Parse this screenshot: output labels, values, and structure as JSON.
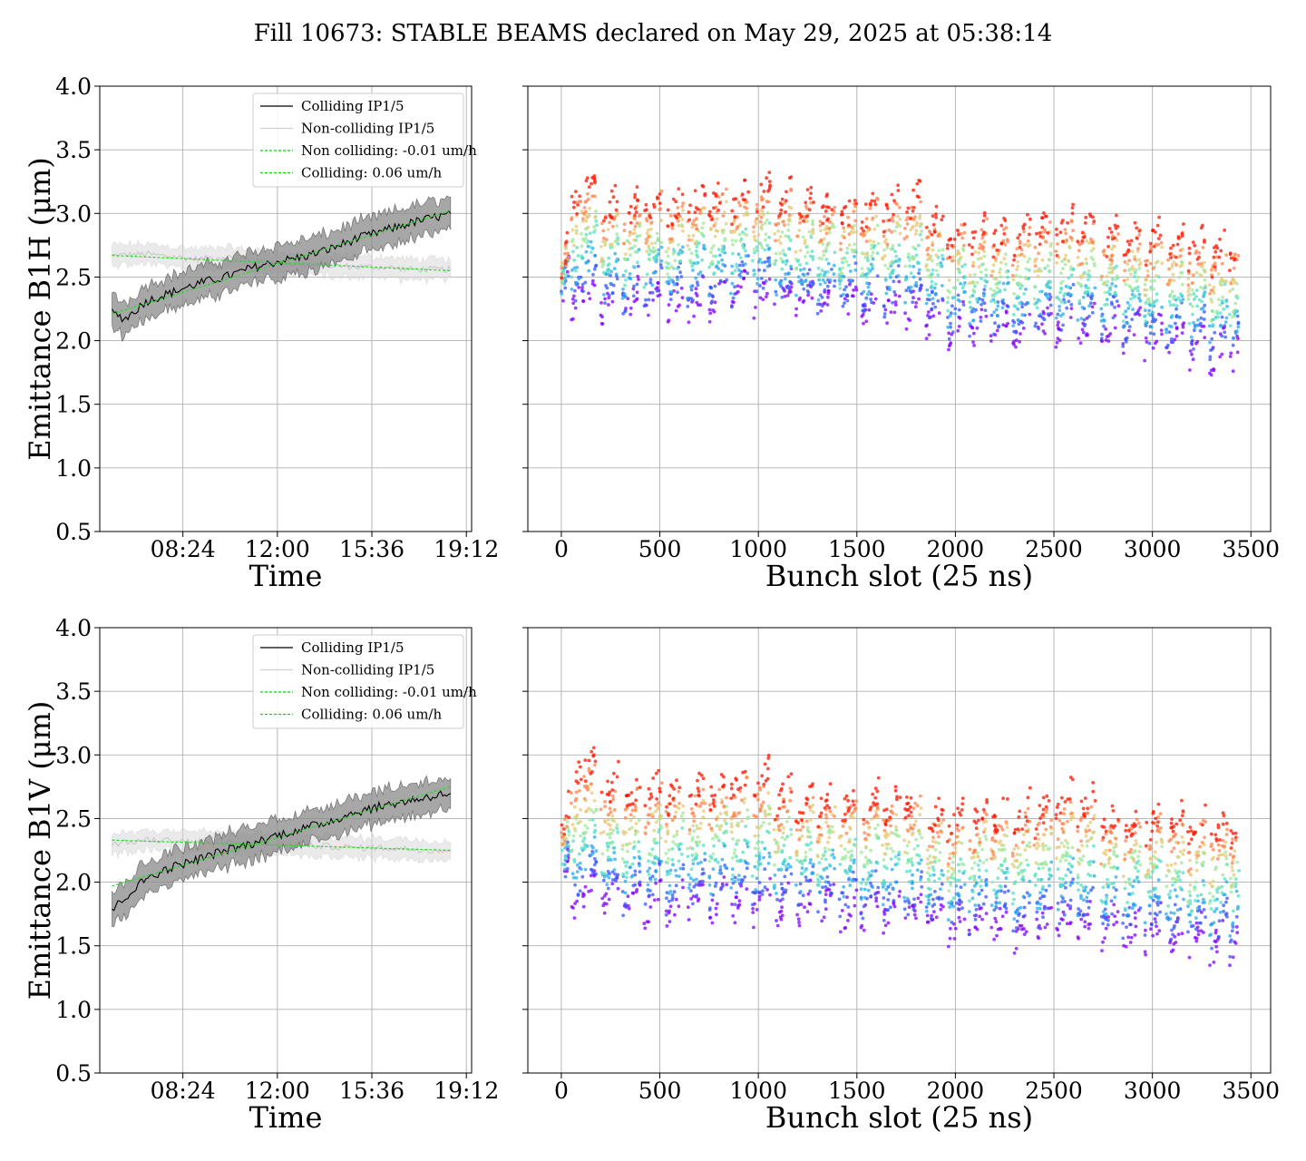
{
  "figure": {
    "title": "Fill 10673: STABLE BEAMS declared on May 29, 2025 at 05:38:14"
  },
  "chart_data": [
    {
      "id": "b1h-time",
      "type": "line",
      "xlabel": "Time",
      "ylabel": "Emittance B1H (μm)",
      "ylim": [
        0.5,
        4.0
      ],
      "xlim": [
        "05:14",
        "19:24"
      ],
      "x_ticks": [
        "08:24",
        "12:00",
        "15:36",
        "19:12"
      ],
      "y_ticks": [
        "0.5",
        "1.0",
        "1.5",
        "2.0",
        "2.5",
        "3.0",
        "3.5",
        "4.0"
      ],
      "grid": true,
      "legend_position": "upper-right",
      "legend": [
        {
          "label": "Colliding IP1/5",
          "color": "#000000",
          "style": "solid"
        },
        {
          "label": "Non-colliding IP1/5",
          "color": "#cfcfcf",
          "style": "solid"
        },
        {
          "label": "Non colliding: -0.01 um/h",
          "color": "#00dd00",
          "style": "dashed"
        },
        {
          "label": "Colliding: 0.06 um/h",
          "color": "#00dd00",
          "style": "dashed"
        }
      ],
      "series": [
        {
          "name": "Colliding IP1/5",
          "x_hours": [
            5.7,
            6.2,
            7.0,
            8.0,
            9.0,
            10.0,
            11.0,
            12.0,
            13.0,
            14.0,
            15.0,
            16.0,
            17.0,
            18.0,
            18.6
          ],
          "mean": [
            2.22,
            2.17,
            2.31,
            2.38,
            2.45,
            2.5,
            2.57,
            2.62,
            2.66,
            2.72,
            2.8,
            2.86,
            2.92,
            2.97,
            2.99
          ],
          "band": 0.13
        },
        {
          "name": "Non-colliding IP1/5",
          "x_hours": [
            5.7,
            7.0,
            8.0,
            9.0,
            10.0,
            11.0,
            12.0,
            13.0,
            14.0,
            15.0,
            16.0,
            17.0,
            18.0,
            18.6
          ],
          "mean": [
            2.67,
            2.68,
            2.66,
            2.64,
            2.66,
            2.63,
            2.61,
            2.6,
            2.59,
            2.58,
            2.58,
            2.56,
            2.56,
            2.56
          ],
          "band": 0.08
        },
        {
          "name": "Non colliding: -0.01 um/h",
          "x_hours": [
            5.7,
            18.6
          ],
          "y": [
            2.67,
            2.55
          ]
        },
        {
          "name": "Colliding: 0.06 um/h",
          "x_hours": [
            5.7,
            18.6
          ],
          "y": [
            2.21,
            3.02
          ]
        }
      ]
    },
    {
      "id": "b1h-bunch",
      "type": "scatter",
      "xlabel": "Bunch slot (25 ns)",
      "ylabel": "",
      "xlim": [
        -170,
        3600
      ],
      "ylim": [
        0.5,
        4.0
      ],
      "x_ticks": [
        "0",
        "500",
        "1000",
        "1500",
        "2000",
        "2500",
        "3000",
        "3500"
      ],
      "grid": true,
      "color_scale": "rainbow (purple = earliest, red = latest)",
      "trains": [
        {
          "start": 0,
          "end": 40,
          "low": 2.45,
          "high": 2.75
        },
        {
          "start": 50,
          "end": 180,
          "low": 2.25,
          "high": 3.35
        },
        {
          "start": 200,
          "end": 290,
          "low": 2.2,
          "high": 3.2
        },
        {
          "start": 310,
          "end": 400,
          "low": 2.2,
          "high": 3.2
        },
        {
          "start": 420,
          "end": 510,
          "low": 2.2,
          "high": 3.25
        },
        {
          "start": 530,
          "end": 620,
          "low": 2.2,
          "high": 3.2
        },
        {
          "start": 640,
          "end": 730,
          "low": 2.2,
          "high": 3.25
        },
        {
          "start": 750,
          "end": 840,
          "low": 2.2,
          "high": 3.3
        },
        {
          "start": 860,
          "end": 950,
          "low": 2.25,
          "high": 3.3
        },
        {
          "start": 970,
          "end": 1060,
          "low": 2.25,
          "high": 3.3
        },
        {
          "start": 1080,
          "end": 1170,
          "low": 2.2,
          "high": 3.25
        },
        {
          "start": 1190,
          "end": 1280,
          "low": 2.2,
          "high": 3.2
        },
        {
          "start": 1300,
          "end": 1390,
          "low": 2.2,
          "high": 3.2
        },
        {
          "start": 1410,
          "end": 1500,
          "low": 2.2,
          "high": 3.15
        },
        {
          "start": 1520,
          "end": 1610,
          "low": 2.15,
          "high": 3.2
        },
        {
          "start": 1630,
          "end": 1720,
          "low": 2.15,
          "high": 3.2
        },
        {
          "start": 1740,
          "end": 1830,
          "low": 2.15,
          "high": 3.25
        },
        {
          "start": 1850,
          "end": 1940,
          "low": 2.1,
          "high": 3.1
        },
        {
          "start": 1960,
          "end": 2050,
          "low": 2.0,
          "high": 3.0
        },
        {
          "start": 2070,
          "end": 2160,
          "low": 2.0,
          "high": 3.0
        },
        {
          "start": 2180,
          "end": 2270,
          "low": 2.0,
          "high": 3.0
        },
        {
          "start": 2290,
          "end": 2380,
          "low": 1.95,
          "high": 3.0
        },
        {
          "start": 2400,
          "end": 2490,
          "low": 2.0,
          "high": 3.05
        },
        {
          "start": 2510,
          "end": 2600,
          "low": 2.0,
          "high": 3.05
        },
        {
          "start": 2620,
          "end": 2710,
          "low": 2.0,
          "high": 3.05
        },
        {
          "start": 2740,
          "end": 2830,
          "low": 2.0,
          "high": 2.95
        },
        {
          "start": 2850,
          "end": 2940,
          "low": 1.95,
          "high": 2.95
        },
        {
          "start": 2960,
          "end": 3050,
          "low": 1.9,
          "high": 2.95
        },
        {
          "start": 3070,
          "end": 3160,
          "low": 1.9,
          "high": 2.9
        },
        {
          "start": 3180,
          "end": 3270,
          "low": 1.85,
          "high": 2.9
        },
        {
          "start": 3290,
          "end": 3380,
          "low": 1.8,
          "high": 2.85
        },
        {
          "start": 3390,
          "end": 3440,
          "low": 1.75,
          "high": 2.85
        }
      ]
    },
    {
      "id": "b1v-time",
      "type": "line",
      "xlabel": "Time",
      "ylabel": "Emittance B1V (μm)",
      "ylim": [
        0.5,
        4.0
      ],
      "xlim": [
        "05:14",
        "19:24"
      ],
      "x_ticks": [
        "08:24",
        "12:00",
        "15:36",
        "19:12"
      ],
      "y_ticks": [
        "0.5",
        "1.0",
        "1.5",
        "2.0",
        "2.5",
        "3.0",
        "3.5",
        "4.0"
      ],
      "grid": true,
      "legend_position": "upper-right",
      "legend": [
        {
          "label": "Colliding IP1/5",
          "color": "#000000",
          "style": "solid"
        },
        {
          "label": "Non-colliding IP1/5",
          "color": "#cfcfcf",
          "style": "solid"
        },
        {
          "label": "Non colliding: -0.01 um/h",
          "color": "#00dd00",
          "style": "dashed"
        },
        {
          "label": "Colliding: 0.06 um/h",
          "color": "#00dd00",
          "style": "dashed"
        }
      ],
      "series": [
        {
          "name": "Colliding IP1/5",
          "x_hours": [
            5.7,
            6.2,
            7.0,
            8.0,
            9.0,
            10.0,
            11.0,
            12.0,
            13.0,
            14.0,
            15.0,
            16.0,
            17.0,
            18.0,
            18.6
          ],
          "mean": [
            1.78,
            1.88,
            2.03,
            2.12,
            2.18,
            2.25,
            2.3,
            2.37,
            2.42,
            2.48,
            2.55,
            2.6,
            2.64,
            2.68,
            2.7
          ],
          "band": 0.13
        },
        {
          "name": "Non-colliding IP1/5",
          "x_hours": [
            5.7,
            7.0,
            8.0,
            9.0,
            10.0,
            11.0,
            12.0,
            13.0,
            14.0,
            15.0,
            16.0,
            17.0,
            18.0,
            18.6
          ],
          "mean": [
            2.3,
            2.33,
            2.33,
            2.32,
            2.31,
            2.3,
            2.3,
            2.29,
            2.28,
            2.27,
            2.27,
            2.26,
            2.25,
            2.25
          ],
          "band": 0.08
        },
        {
          "name": "Non colliding: -0.01 um/h",
          "x_hours": [
            5.7,
            18.6
          ],
          "y": [
            2.33,
            2.25
          ]
        },
        {
          "name": "Colliding: 0.06 um/h",
          "x_hours": [
            5.7,
            18.6
          ],
          "y": [
            1.97,
            2.75
          ]
        }
      ]
    },
    {
      "id": "b1v-bunch",
      "type": "scatter",
      "xlabel": "Bunch slot (25 ns)",
      "ylabel": "",
      "xlim": [
        -170,
        3600
      ],
      "ylim": [
        0.5,
        4.0
      ],
      "x_ticks": [
        "0",
        "500",
        "1000",
        "1500",
        "2000",
        "2500",
        "3000",
        "3500"
      ],
      "grid": true,
      "color_scale": "rainbow (purple = earliest, red = latest)",
      "trains": [
        {
          "start": 0,
          "end": 40,
          "low": 2.0,
          "high": 2.6
        },
        {
          "start": 50,
          "end": 180,
          "low": 1.75,
          "high": 3.1
        },
        {
          "start": 200,
          "end": 290,
          "low": 1.75,
          "high": 2.9
        },
        {
          "start": 310,
          "end": 400,
          "low": 1.7,
          "high": 2.85
        },
        {
          "start": 420,
          "end": 510,
          "low": 1.7,
          "high": 2.9
        },
        {
          "start": 530,
          "end": 620,
          "low": 1.7,
          "high": 2.9
        },
        {
          "start": 640,
          "end": 730,
          "low": 1.7,
          "high": 2.9
        },
        {
          "start": 750,
          "end": 840,
          "low": 1.7,
          "high": 2.95
        },
        {
          "start": 860,
          "end": 950,
          "low": 1.7,
          "high": 3.0
        },
        {
          "start": 970,
          "end": 1060,
          "low": 1.7,
          "high": 3.0
        },
        {
          "start": 1080,
          "end": 1170,
          "low": 1.7,
          "high": 2.85
        },
        {
          "start": 1190,
          "end": 1280,
          "low": 1.7,
          "high": 2.8
        },
        {
          "start": 1300,
          "end": 1390,
          "low": 1.7,
          "high": 2.8
        },
        {
          "start": 1410,
          "end": 1500,
          "low": 1.65,
          "high": 2.8
        },
        {
          "start": 1520,
          "end": 1610,
          "low": 1.65,
          "high": 2.8
        },
        {
          "start": 1630,
          "end": 1720,
          "low": 1.65,
          "high": 2.8
        },
        {
          "start": 1740,
          "end": 1830,
          "low": 1.6,
          "high": 2.85
        },
        {
          "start": 1850,
          "end": 1940,
          "low": 1.6,
          "high": 2.7
        },
        {
          "start": 1960,
          "end": 2050,
          "low": 1.55,
          "high": 2.65
        },
        {
          "start": 2070,
          "end": 2160,
          "low": 1.55,
          "high": 2.7
        },
        {
          "start": 2180,
          "end": 2270,
          "low": 1.55,
          "high": 2.7
        },
        {
          "start": 2290,
          "end": 2380,
          "low": 1.5,
          "high": 2.7
        },
        {
          "start": 2400,
          "end": 2490,
          "low": 1.55,
          "high": 2.75
        },
        {
          "start": 2510,
          "end": 2600,
          "low": 1.55,
          "high": 2.85
        },
        {
          "start": 2620,
          "end": 2710,
          "low": 1.55,
          "high": 2.8
        },
        {
          "start": 2740,
          "end": 2830,
          "low": 1.55,
          "high": 2.65
        },
        {
          "start": 2850,
          "end": 2940,
          "low": 1.5,
          "high": 2.65
        },
        {
          "start": 2960,
          "end": 3050,
          "low": 1.5,
          "high": 2.65
        },
        {
          "start": 3070,
          "end": 3160,
          "low": 1.45,
          "high": 2.65
        },
        {
          "start": 3180,
          "end": 3270,
          "low": 1.45,
          "high": 2.6
        },
        {
          "start": 3290,
          "end": 3380,
          "low": 1.4,
          "high": 2.6
        },
        {
          "start": 3390,
          "end": 3440,
          "low": 1.35,
          "high": 2.6
        }
      ]
    }
  ]
}
